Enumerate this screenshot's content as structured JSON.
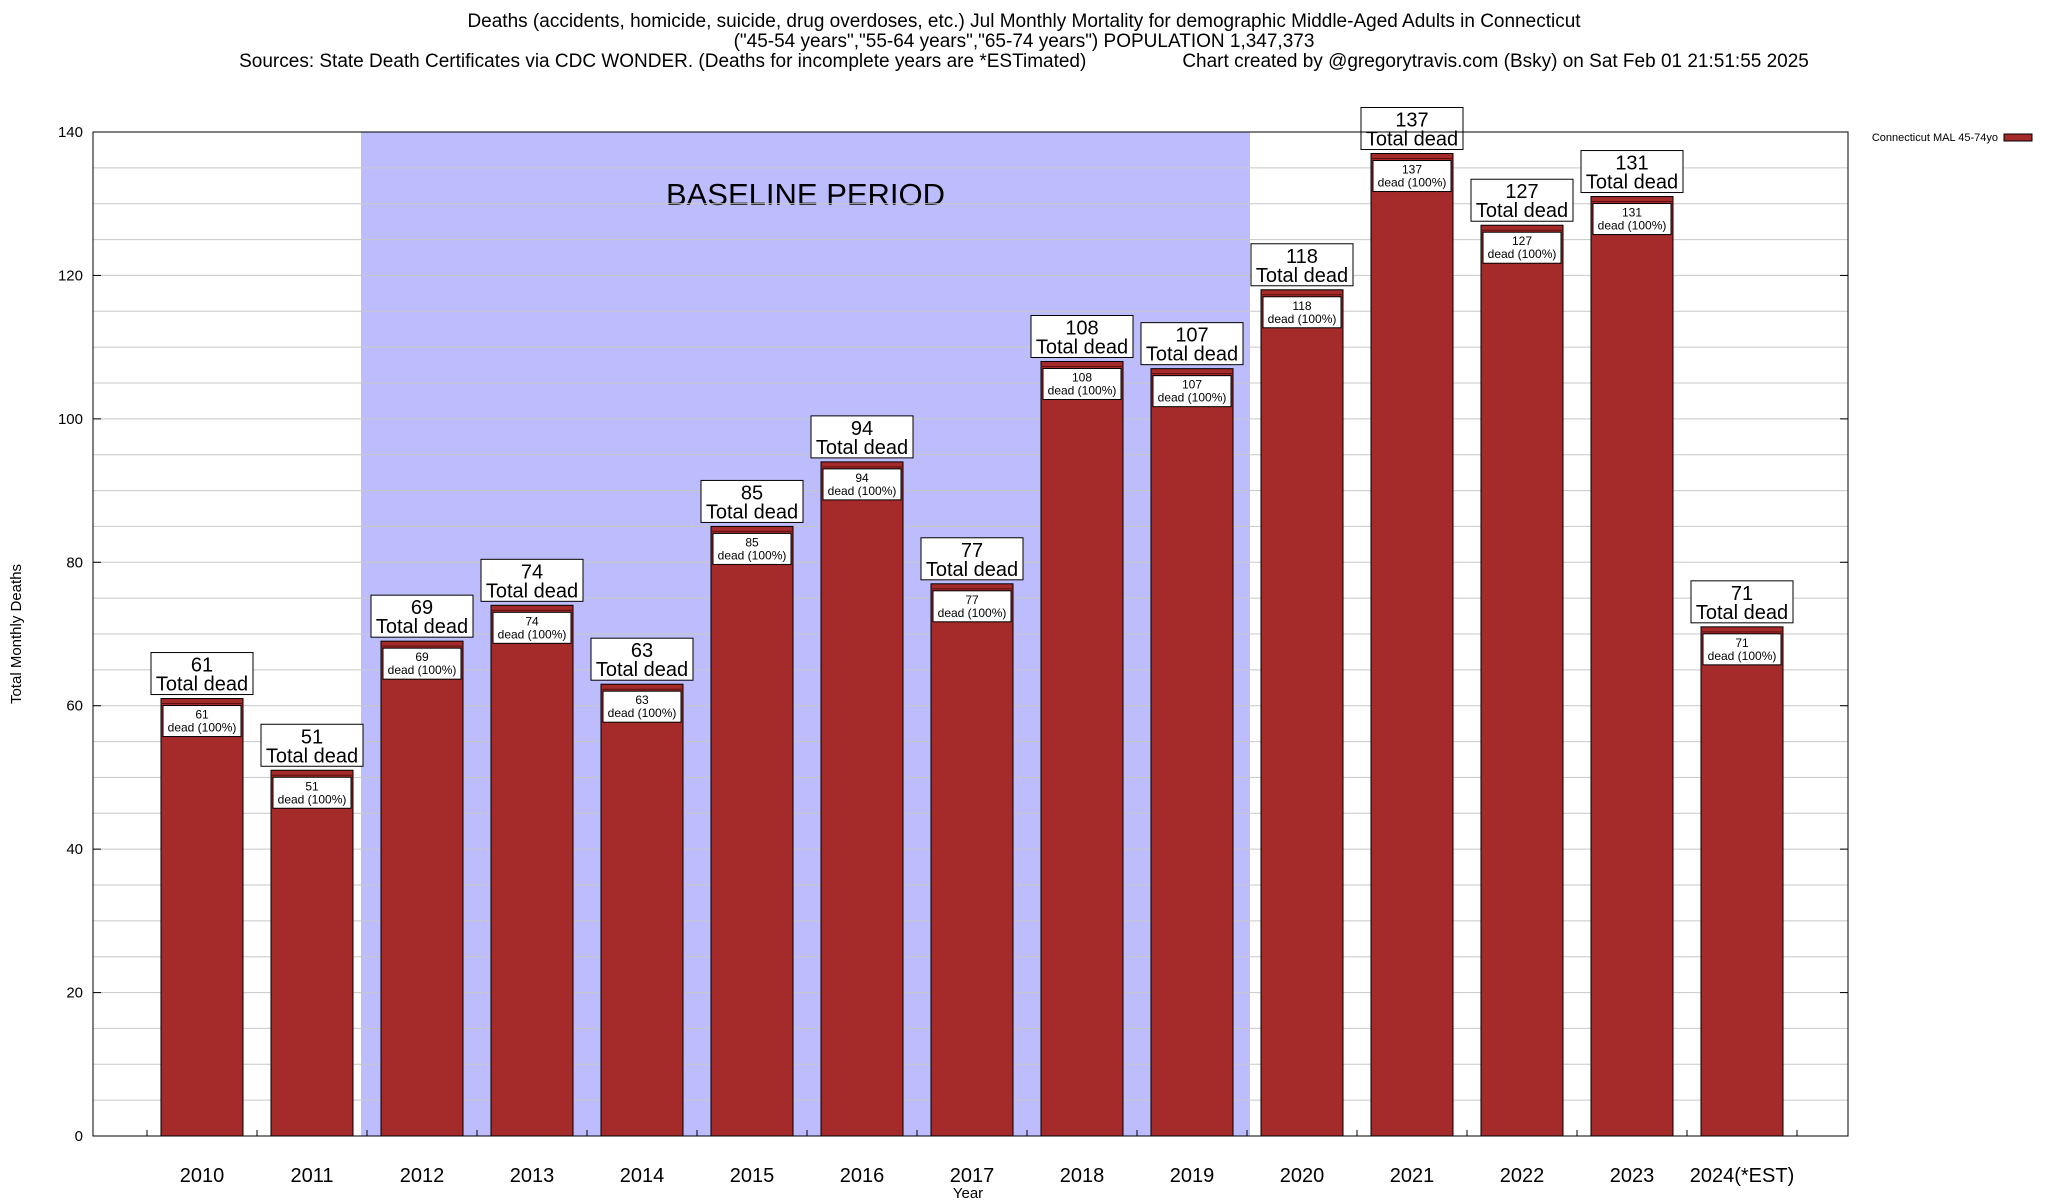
{
  "title": {
    "line1": "Deaths (accidents, homicide, suicide, drug overdoses, etc.) Jul Monthly Mortality for demographic Middle-Aged Adults in Connecticut",
    "line2": "(\"45-54 years\",\"55-64 years\",\"65-74 years\") POPULATION 1,347,373",
    "line3_left": "Sources: State Death Certificates via CDC WONDER. (Deaths for incomplete years are *ESTimated)",
    "line3_right": "Chart created by @gregorytravis.com (Bsky) on Sat Feb 01 21:51:55 2025"
  },
  "chart_data": {
    "type": "bar",
    "xlabel": "Year",
    "ylabel": "Total Monthly Deaths",
    "ylim": [
      0,
      140
    ],
    "yticks": [
      0,
      20,
      40,
      60,
      80,
      100,
      120,
      140
    ],
    "grid": true,
    "categories": [
      "2010",
      "2011",
      "2012",
      "2013",
      "2014",
      "2015",
      "2016",
      "2017",
      "2018",
      "2019",
      "2020",
      "2021",
      "2022",
      "2023",
      "2024(*EST)"
    ],
    "series": [
      {
        "name": "Connecticut MAL 45-74yo",
        "color": "#a52a2a",
        "values": [
          61,
          51,
          69,
          74,
          63,
          85,
          94,
          77,
          108,
          107,
          118,
          137,
          127,
          131,
          71
        ]
      }
    ],
    "top_label_text": "Total dead",
    "inner_label_suffix": "dead (100%)",
    "baseline": {
      "label": "BASELINE PERIOD",
      "from": "2012",
      "to": "2019",
      "color": "#bdbdfd"
    },
    "legend": {
      "position": "top-right",
      "entries": [
        "Connecticut MAL 45-74yo"
      ]
    }
  }
}
